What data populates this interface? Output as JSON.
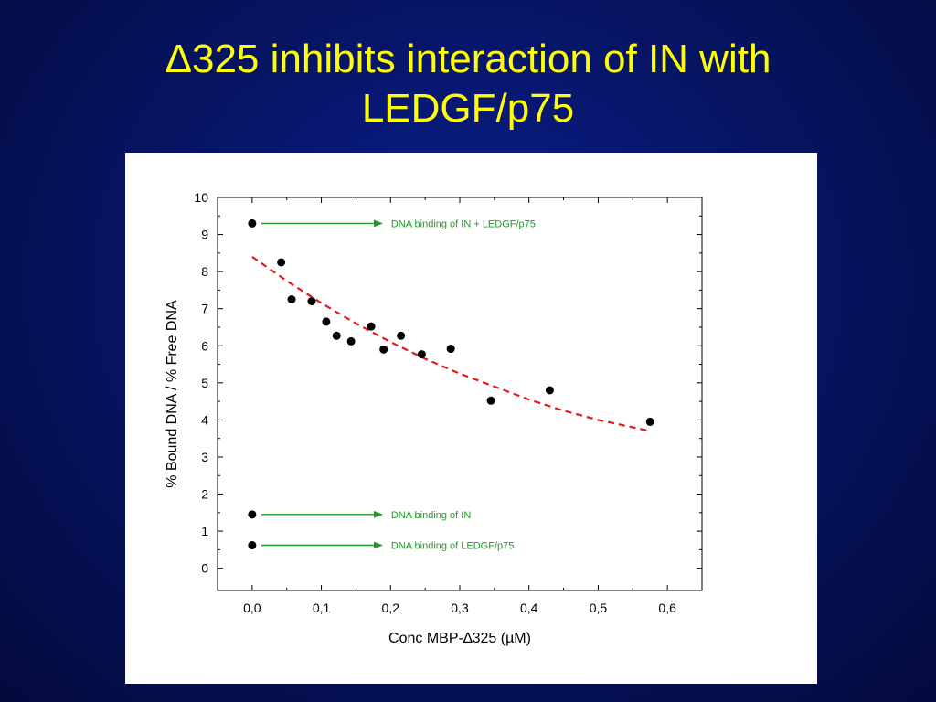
{
  "slide": {
    "title_line1": "Δ325 inhibits interaction of IN with",
    "title_line2": "LEDGF/p75"
  },
  "colors": {
    "background": "#071566",
    "title": "#ffff00",
    "fit_line": "#e31a1a",
    "arrow": "#1f9b2a",
    "points": "#000000"
  },
  "chart_data": {
    "type": "scatter",
    "xlabel": "Conc MBP-∆325 (µM)",
    "ylabel": "% Bound DNA / % Free DNA",
    "xlim": [
      -0.05,
      0.65
    ],
    "ylim": [
      -0.6,
      10
    ],
    "x_ticks": [
      0.0,
      0.1,
      0.2,
      0.3,
      0.4,
      0.5,
      0.6
    ],
    "x_tick_labels": [
      "0,0",
      "0,1",
      "0,2",
      "0,3",
      "0,4",
      "0,5",
      "0,6"
    ],
    "y_ticks": [
      0,
      1,
      2,
      3,
      4,
      5,
      6,
      7,
      8,
      9,
      10
    ],
    "y_tick_labels": [
      "0",
      "1",
      "2",
      "3",
      "4",
      "5",
      "6",
      "7",
      "8",
      "9",
      "10"
    ],
    "grid": false,
    "series": [
      {
        "marker": "circle",
        "points": [
          [
            0.042,
            8.25
          ],
          [
            0.057,
            7.25
          ],
          [
            0.086,
            7.2
          ],
          [
            0.107,
            6.65
          ],
          [
            0.122,
            6.27
          ],
          [
            0.143,
            6.12
          ],
          [
            0.172,
            6.52
          ],
          [
            0.19,
            5.9
          ],
          [
            0.215,
            6.27
          ],
          [
            0.245,
            5.77
          ],
          [
            0.287,
            5.92
          ],
          [
            0.345,
            4.52
          ],
          [
            0.43,
            4.8
          ],
          [
            0.575,
            3.95
          ]
        ]
      }
    ],
    "fit": {
      "style": "dashed",
      "points": [
        [
          0.0,
          8.4
        ],
        [
          0.05,
          7.75
        ],
        [
          0.1,
          7.15
        ],
        [
          0.15,
          6.6
        ],
        [
          0.2,
          6.1
        ],
        [
          0.25,
          5.65
        ],
        [
          0.3,
          5.25
        ],
        [
          0.35,
          4.9
        ],
        [
          0.4,
          4.55
        ],
        [
          0.45,
          4.25
        ],
        [
          0.5,
          4.0
        ],
        [
          0.55,
          3.8
        ],
        [
          0.575,
          3.7
        ]
      ]
    },
    "annotations": [
      {
        "label": "DNA binding of IN + LEDGF/p75",
        "point": [
          0.0,
          9.3
        ]
      },
      {
        "label": "DNA binding of IN",
        "point": [
          0.0,
          1.45
        ]
      },
      {
        "label": "DNA binding of LEDGF/p75",
        "point": [
          0.0,
          0.62
        ]
      }
    ]
  }
}
